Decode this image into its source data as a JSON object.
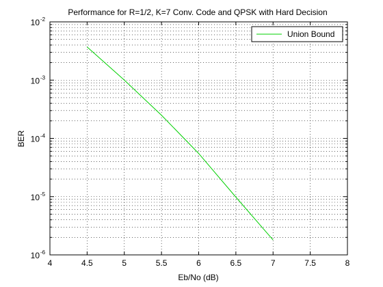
{
  "chart_data": {
    "type": "line",
    "title": "Performance for R=1/2, K=7 Conv. Code and QPSK with Hard Decision",
    "xlabel": "Eb/No (dB)",
    "ylabel": "BER",
    "xlim": [
      4,
      8
    ],
    "ylim": [
      1e-06,
      0.01
    ],
    "yscale": "log",
    "grid": true,
    "legend_position": "top-right",
    "x_ticks": [
      "4",
      "4.5",
      "5",
      "5.5",
      "6",
      "6.5",
      "7",
      "7.5",
      "8"
    ],
    "y_ticks": [
      {
        "base": "10",
        "exp": "-6"
      },
      {
        "base": "10",
        "exp": "-5"
      },
      {
        "base": "10",
        "exp": "-4"
      },
      {
        "base": "10",
        "exp": "-3"
      },
      {
        "base": "10",
        "exp": "-2"
      }
    ],
    "series": [
      {
        "name": "Union Bound",
        "color": "#00d000",
        "x": [
          4.5,
          5.0,
          5.5,
          6.0,
          6.5,
          7.0
        ],
        "y": [
          0.0037,
          0.001,
          0.00025,
          5.5e-05,
          9.8e-06,
          1.8e-06
        ]
      }
    ]
  }
}
